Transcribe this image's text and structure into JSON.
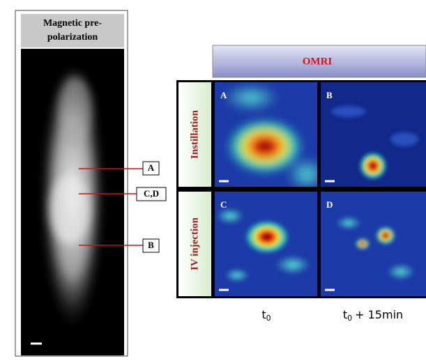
{
  "left_panel": {
    "title": "Magnetic pre-polarization",
    "markers": [
      "A",
      "C,D",
      "B"
    ]
  },
  "omri": {
    "header": "OMRI",
    "rows": [
      "Instillation",
      "IV injection"
    ],
    "panels": [
      "A",
      "B",
      "C",
      "D"
    ],
    "columns": [
      {
        "text": "t",
        "sub": "0"
      },
      {
        "text": "t",
        "sub": "0",
        "after": "+ 15min"
      }
    ]
  }
}
